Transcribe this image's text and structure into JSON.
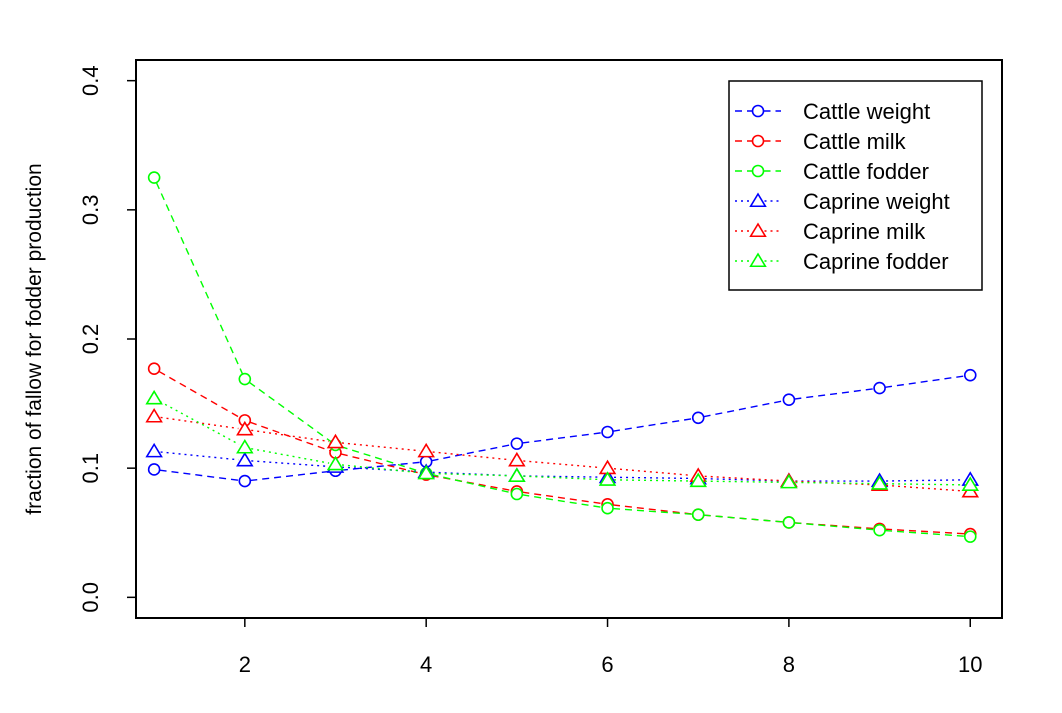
{
  "chart_data": {
    "type": "line",
    "title": "",
    "xlabel": "",
    "ylabel": "fraction of fallow for fodder production",
    "xlim": [
      0.8,
      10.35
    ],
    "ylim": [
      -0.016,
      0.416
    ],
    "x_ticks": [
      2,
      4,
      6,
      8,
      10
    ],
    "y_ticks": [
      0.0,
      0.1,
      0.2,
      0.3,
      0.4
    ],
    "x_tick_labels": [
      "2",
      "4",
      "6",
      "8",
      "10"
    ],
    "y_tick_labels": [
      "0.0",
      "0.1",
      "0.2",
      "0.3",
      "0.4"
    ],
    "grid": false,
    "legend_position": "top-right",
    "x": [
      1,
      2,
      3,
      4,
      5,
      6,
      7,
      8,
      9,
      10
    ],
    "series": [
      {
        "name": "Cattle weight",
        "color": "#0000ff",
        "line": "dashed",
        "marker": "circle",
        "values": [
          0.099,
          0.09,
          0.098,
          0.105,
          0.119,
          0.128,
          0.139,
          0.153,
          0.162,
          0.172
        ]
      },
      {
        "name": "Cattle milk",
        "color": "#ff0000",
        "line": "dashed",
        "marker": "circle",
        "values": [
          0.177,
          0.137,
          0.112,
          0.095,
          0.082,
          0.072,
          0.064,
          0.058,
          0.053,
          0.049
        ]
      },
      {
        "name": "Cattle fodder",
        "color": "#00ff00",
        "line": "dashed",
        "marker": "circle",
        "values": [
          0.325,
          0.169,
          0.118,
          0.096,
          0.08,
          0.069,
          0.064,
          0.058,
          0.052,
          0.047
        ]
      },
      {
        "name": "Caprine weight",
        "color": "#0000ff",
        "line": "dotted",
        "marker": "triangle",
        "values": [
          0.113,
          0.106,
          0.101,
          0.097,
          0.094,
          0.093,
          0.092,
          0.09,
          0.09,
          0.091
        ]
      },
      {
        "name": "Caprine milk",
        "color": "#ff0000",
        "line": "dotted",
        "marker": "triangle",
        "values": [
          0.14,
          0.13,
          0.12,
          0.113,
          0.106,
          0.1,
          0.094,
          0.09,
          0.087,
          0.082
        ]
      },
      {
        "name": "Caprine fodder",
        "color": "#00ff00",
        "line": "dotted",
        "marker": "triangle",
        "values": [
          0.154,
          0.116,
          0.103,
          0.096,
          0.094,
          0.091,
          0.09,
          0.089,
          0.088,
          0.087
        ]
      }
    ]
  }
}
